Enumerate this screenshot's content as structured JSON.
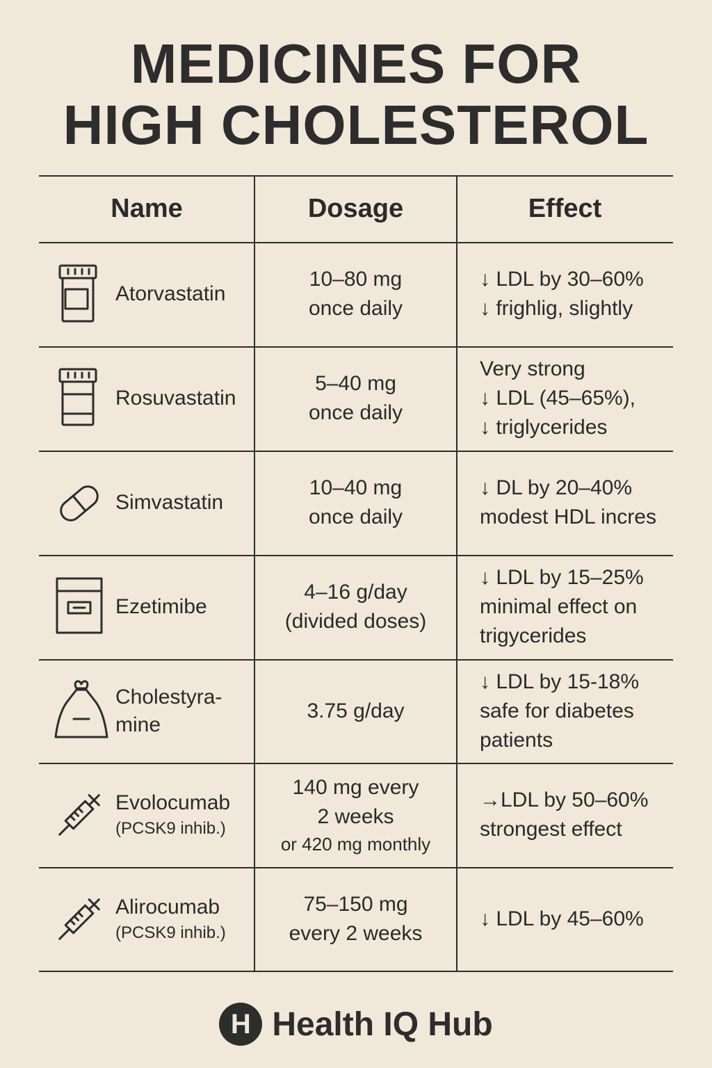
{
  "header": {
    "title": [
      "MEDICINES FOR",
      "HIGH CHOLESTEROL"
    ]
  },
  "table": {
    "columns": [
      "Name",
      "Dosage",
      "Effect"
    ],
    "rows": [
      {
        "name": [
          "Atorvastatin"
        ],
        "dosage": [
          "10–80 mg",
          "once daily"
        ],
        "effect": [
          "↓ LDL by 30–60%",
          "↓ frighlig, slightly"
        ]
      },
      {
        "name": [
          "Rosuvastatin"
        ],
        "dosage": [
          "5–40 mg",
          "once daily"
        ],
        "effect": [
          "Very strong",
          "↓ LDL (45–65%),",
          "↓ triglycerides"
        ]
      },
      {
        "name": [
          "Simvastatin"
        ],
        "dosage": [
          "10–40 mg",
          "once daily"
        ],
        "effect": [
          "↓ DL by 20–40%",
          "modest HDL incres"
        ]
      },
      {
        "name": [
          "Ezetimibe"
        ],
        "dosage": [
          "4–16 g/day",
          "(divided doses)"
        ],
        "effect": [
          "↓ LDL by 15–25%",
          "minimal effect on",
          "trigycerides"
        ]
      },
      {
        "name": [
          "Cholestyra-",
          "mine"
        ],
        "dosage": [
          "3.75 g/day"
        ],
        "effect": [
          "↓ LDL by 15-18%",
          "safe for diabetes",
          "patients"
        ]
      },
      {
        "name": [
          "Evolocumab"
        ],
        "note": "(PCSK9 inhib.)",
        "dosage": [
          "140 mg every",
          "2 weeks",
          "or 420 mg monthly"
        ],
        "effect": [
          "→LDL by 50–60%",
          "strongest effect"
        ]
      },
      {
        "name": [
          "Alirocumab"
        ],
        "note": "(PCSK9 inhib.)",
        "dosage": [
          "75–150 mg",
          "every 2 weeks"
        ],
        "effect": [
          "↓ LDL by 45–60%"
        ]
      }
    ]
  },
  "footer": {
    "logo": "H",
    "brand": "Health IQ Hub"
  }
}
